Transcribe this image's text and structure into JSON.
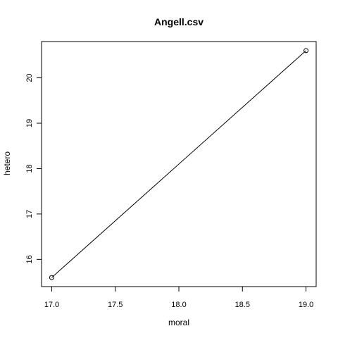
{
  "chart_data": {
    "type": "line",
    "title": "Angell.csv",
    "xlabel": "moral",
    "ylabel": "hetero",
    "x": [
      17.0,
      19.0
    ],
    "series": [
      {
        "values": [
          15.6,
          20.6
        ]
      }
    ],
    "xlim": [
      16.92,
      19.08
    ],
    "ylim": [
      15.4,
      20.8
    ],
    "xticks": [
      17.0,
      17.5,
      18.0,
      18.5,
      19.0
    ],
    "xtick_labels": [
      "17.0",
      "17.5",
      "18.0",
      "18.5",
      "19.0"
    ],
    "yticks": [
      16,
      17,
      18,
      19,
      20
    ],
    "ytick_labels": [
      "16",
      "17",
      "18",
      "19",
      "20"
    ],
    "grid": false,
    "markers": "open-circle",
    "line_color": "#000000"
  }
}
